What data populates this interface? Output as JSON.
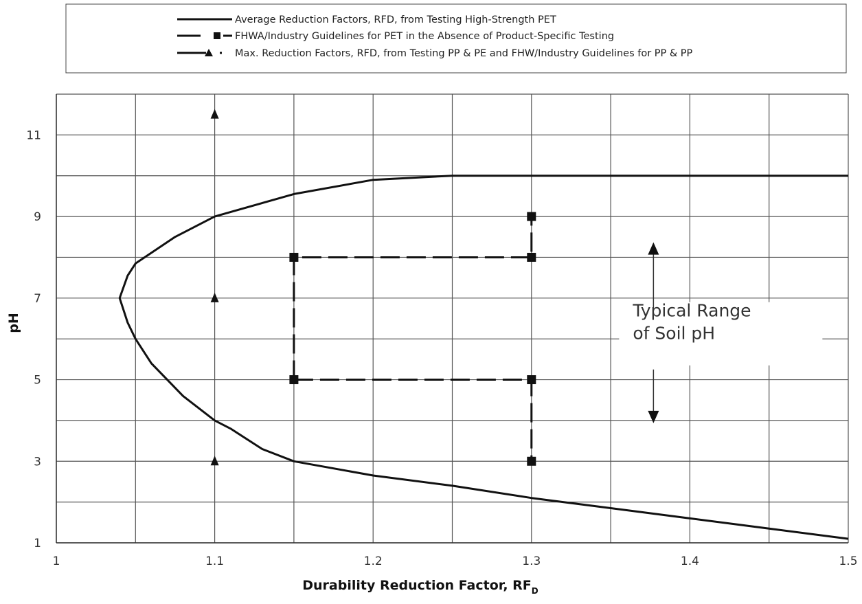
{
  "chart_data": {
    "type": "line",
    "xlabel": "Durability Reduction Factor, RF",
    "xlabel_subscript": "D",
    "ylabel": "pH",
    "xlim": [
      1.0,
      1.5
    ],
    "ylim": [
      1,
      12
    ],
    "x_tick_labels": [
      "1",
      "1.1",
      "1.2",
      "1.3",
      "1.4",
      "1.5"
    ],
    "y_tick_labels": [
      "1",
      "3",
      "5",
      "7",
      "9",
      "11"
    ],
    "grid": true,
    "legend_position": "top",
    "series": [
      {
        "name": "Average Reduction Factors, RFD, from Testing High-Strength PET",
        "style": "solid",
        "color": "#111111",
        "points": [
          [
            1.5,
            1.1
          ],
          [
            1.45,
            1.35
          ],
          [
            1.4,
            1.6
          ],
          [
            1.35,
            1.85
          ],
          [
            1.3,
            2.1
          ],
          [
            1.25,
            2.4
          ],
          [
            1.2,
            2.65
          ],
          [
            1.15,
            3.0
          ],
          [
            1.13,
            3.3
          ],
          [
            1.11,
            3.8
          ],
          [
            1.1,
            4.0
          ],
          [
            1.08,
            4.6
          ],
          [
            1.06,
            5.4
          ],
          [
            1.05,
            6.0
          ],
          [
            1.045,
            6.4
          ],
          [
            1.04,
            7.0
          ],
          [
            1.045,
            7.55
          ],
          [
            1.05,
            7.85
          ],
          [
            1.075,
            8.5
          ],
          [
            1.1,
            9.0
          ],
          [
            1.15,
            9.55
          ],
          [
            1.2,
            9.9
          ],
          [
            1.25,
            10.0
          ],
          [
            1.5,
            10.0
          ]
        ]
      },
      {
        "name": "FHWA/Industry Guidelines for PET in the Absence of Product-Specific Testing",
        "style": "dashed-square-markers",
        "color": "#111111",
        "segments": [
          [
            [
              1.15,
              5.0
            ],
            [
              1.15,
              8.0
            ],
            [
              1.3,
              8.0
            ],
            [
              1.3,
              9.0
            ]
          ],
          [
            [
              1.15,
              5.0
            ],
            [
              1.3,
              5.0
            ],
            [
              1.3,
              3.0
            ]
          ]
        ],
        "markers": [
          [
            1.15,
            5.0
          ],
          [
            1.15,
            8.0
          ],
          [
            1.3,
            8.0
          ],
          [
            1.3,
            9.0
          ],
          [
            1.3,
            5.0
          ],
          [
            1.3,
            3.0
          ]
        ]
      },
      {
        "name": "Max. Reduction Factors, RFD, from Testing PP & PE and FHW/Industry Guidelines for PP & PP",
        "style": "dotted-triangle-markers",
        "color": "#111111",
        "points": [
          [
            1.1,
            3.0
          ],
          [
            1.1,
            7.0
          ],
          [
            1.1,
            11.5
          ]
        ]
      }
    ],
    "annotation": {
      "lines": [
        "Typical Range",
        "of Soil pH"
      ],
      "arrow_x": 1.377,
      "arrow_y_range": [
        4.0,
        8.3
      ]
    }
  }
}
